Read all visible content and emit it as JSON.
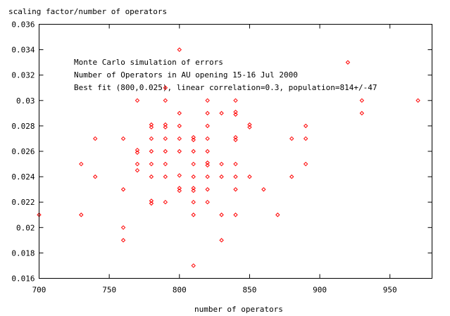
{
  "chart_data": {
    "type": "scatter",
    "ylabel": "scaling factor/number of operators",
    "xlabel": "number of operators",
    "annotations": [
      "Monte Carlo simulation of errors",
      "Number of Operators in AU opening 15-16 Jul 2000",
      "Best fit (800,0.025), linear correlation=0.3, population=814+/-47"
    ],
    "xlim": [
      700,
      980
    ],
    "ylim": [
      0.016,
      0.036
    ],
    "x_ticks": [
      700,
      750,
      800,
      850,
      900,
      950
    ],
    "y_ticks": [
      0.016,
      0.018,
      0.02,
      0.022,
      0.024,
      0.026,
      0.028,
      0.03,
      0.032,
      0.034,
      0.036
    ],
    "x_tick_labels": [
      "700",
      "750",
      "800",
      "850",
      "900",
      "950"
    ],
    "y_tick_labels": [
      "0.016",
      "0.018",
      "0.02",
      "0.022",
      "0.024",
      "0.026",
      "0.028",
      "0.03",
      "0.032",
      "0.034",
      "0.036"
    ],
    "grid": false,
    "marker_color": "#ff0000",
    "marker": "diamond",
    "points": [
      {
        "x": 700,
        "y": 0.021
      },
      {
        "x": 730,
        "y": 0.025
      },
      {
        "x": 730,
        "y": 0.021
      },
      {
        "x": 740,
        "y": 0.027
      },
      {
        "x": 740,
        "y": 0.024
      },
      {
        "x": 760,
        "y": 0.027
      },
      {
        "x": 760,
        "y": 0.023
      },
      {
        "x": 760,
        "y": 0.02
      },
      {
        "x": 760,
        "y": 0.019
      },
      {
        "x": 770,
        "y": 0.03
      },
      {
        "x": 770,
        "y": 0.0261
      },
      {
        "x": 770,
        "y": 0.0259
      },
      {
        "x": 770,
        "y": 0.025
      },
      {
        "x": 770,
        "y": 0.0245
      },
      {
        "x": 780,
        "y": 0.0281
      },
      {
        "x": 780,
        "y": 0.0279
      },
      {
        "x": 780,
        "y": 0.027
      },
      {
        "x": 780,
        "y": 0.026
      },
      {
        "x": 780,
        "y": 0.025
      },
      {
        "x": 780,
        "y": 0.024
      },
      {
        "x": 780,
        "y": 0.0221
      },
      {
        "x": 780,
        "y": 0.0219
      },
      {
        "x": 790,
        "y": 0.031
      },
      {
        "x": 790,
        "y": 0.03
      },
      {
        "x": 790,
        "y": 0.0281
      },
      {
        "x": 790,
        "y": 0.0279
      },
      {
        "x": 790,
        "y": 0.027
      },
      {
        "x": 790,
        "y": 0.026
      },
      {
        "x": 790,
        "y": 0.025
      },
      {
        "x": 790,
        "y": 0.024
      },
      {
        "x": 790,
        "y": 0.022
      },
      {
        "x": 800,
        "y": 0.034
      },
      {
        "x": 800,
        "y": 0.029
      },
      {
        "x": 800,
        "y": 0.028
      },
      {
        "x": 800,
        "y": 0.027
      },
      {
        "x": 800,
        "y": 0.026
      },
      {
        "x": 800,
        "y": 0.0241
      },
      {
        "x": 800,
        "y": 0.0231
      },
      {
        "x": 800,
        "y": 0.0229
      },
      {
        "x": 810,
        "y": 0.0271
      },
      {
        "x": 810,
        "y": 0.0269
      },
      {
        "x": 810,
        "y": 0.026
      },
      {
        "x": 810,
        "y": 0.025
      },
      {
        "x": 810,
        "y": 0.024
      },
      {
        "x": 810,
        "y": 0.0231
      },
      {
        "x": 810,
        "y": 0.0229
      },
      {
        "x": 810,
        "y": 0.022
      },
      {
        "x": 810,
        "y": 0.021
      },
      {
        "x": 810,
        "y": 0.017
      },
      {
        "x": 820,
        "y": 0.03
      },
      {
        "x": 820,
        "y": 0.029
      },
      {
        "x": 820,
        "y": 0.028
      },
      {
        "x": 820,
        "y": 0.027
      },
      {
        "x": 820,
        "y": 0.026
      },
      {
        "x": 820,
        "y": 0.0251
      },
      {
        "x": 820,
        "y": 0.0249
      },
      {
        "x": 820,
        "y": 0.024
      },
      {
        "x": 820,
        "y": 0.023
      },
      {
        "x": 820,
        "y": 0.022
      },
      {
        "x": 830,
        "y": 0.029
      },
      {
        "x": 830,
        "y": 0.025
      },
      {
        "x": 830,
        "y": 0.024
      },
      {
        "x": 830,
        "y": 0.021
      },
      {
        "x": 830,
        "y": 0.019
      },
      {
        "x": 840,
        "y": 0.03
      },
      {
        "x": 840,
        "y": 0.0291
      },
      {
        "x": 840,
        "y": 0.0289
      },
      {
        "x": 840,
        "y": 0.0271
      },
      {
        "x": 840,
        "y": 0.0269
      },
      {
        "x": 840,
        "y": 0.025
      },
      {
        "x": 840,
        "y": 0.024
      },
      {
        "x": 840,
        "y": 0.023
      },
      {
        "x": 840,
        "y": 0.021
      },
      {
        "x": 850,
        "y": 0.0281
      },
      {
        "x": 850,
        "y": 0.0279
      },
      {
        "x": 850,
        "y": 0.024
      },
      {
        "x": 860,
        "y": 0.023
      },
      {
        "x": 870,
        "y": 0.021
      },
      {
        "x": 880,
        "y": 0.027
      },
      {
        "x": 880,
        "y": 0.024
      },
      {
        "x": 890,
        "y": 0.028
      },
      {
        "x": 890,
        "y": 0.027
      },
      {
        "x": 890,
        "y": 0.025
      },
      {
        "x": 920,
        "y": 0.033
      },
      {
        "x": 930,
        "y": 0.03
      },
      {
        "x": 930,
        "y": 0.029
      },
      {
        "x": 970,
        "y": 0.03
      }
    ]
  }
}
